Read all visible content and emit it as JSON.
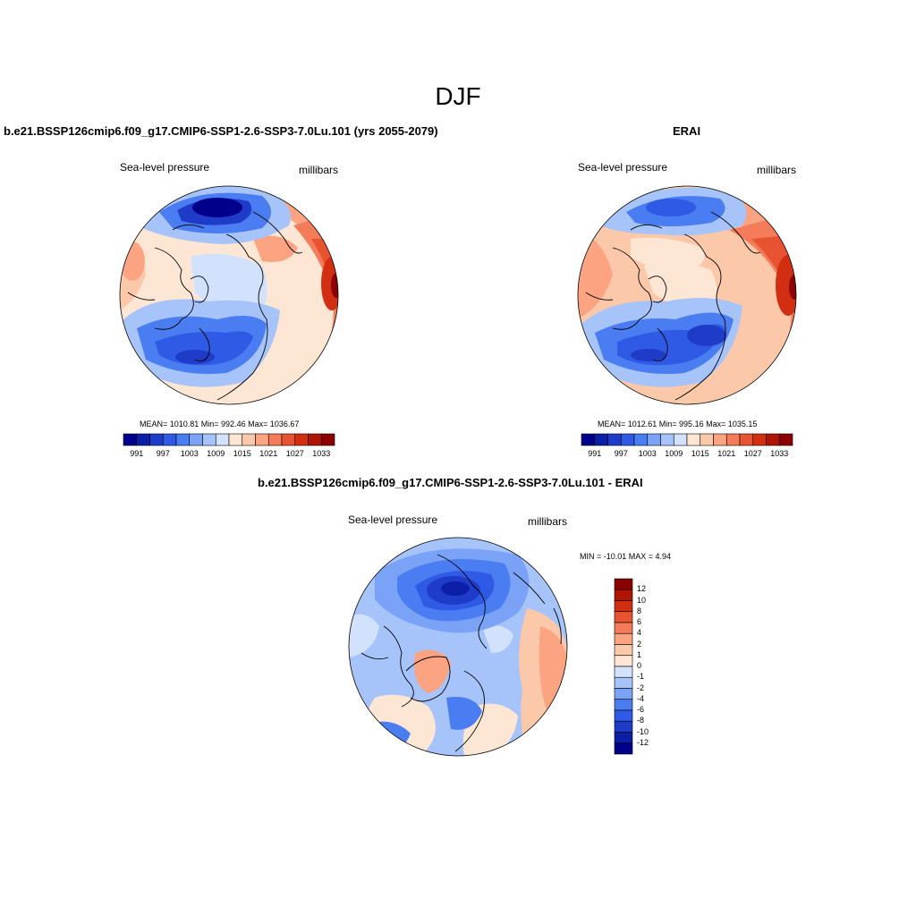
{
  "figure": {
    "title": "DJF"
  },
  "panels": {
    "model": {
      "title": "b.e21.BSSP126cmip6.f09_g17.CMIP6-SSP1-2.6-SSP3-7.0Lu.101 (yrs 2055-2079)",
      "left_label": "Sea-level pressure",
      "right_label": "millibars",
      "stats": "MEAN= 1010.81  Min= 992.46  Max= 1036.67"
    },
    "obs": {
      "title": "ERAI",
      "left_label": "Sea-level pressure",
      "right_label": "millibars",
      "stats": "MEAN= 1012.61  Min= 995.16  Max= 1035.15"
    },
    "diff": {
      "title": "b.e21.BSSP126cmip6.f09_g17.CMIP6-SSP1-2.6-SSP3-7.0Lu.101 - ERAI",
      "left_label": "Sea-level pressure",
      "right_label": "millibars",
      "stats": "MIN = -10.01 MAX =   4.94"
    }
  },
  "colorbars": {
    "absolute": {
      "orientation": "horizontal",
      "tick_labels": [
        "991",
        "997",
        "1003",
        "1009",
        "1015",
        "1021",
        "1027",
        "1033"
      ],
      "colors": [
        "#00008b",
        "#0c1ea6",
        "#1e3cc8",
        "#2e5ae6",
        "#4a7cf2",
        "#7aa2f6",
        "#a6c4fa",
        "#d2e2fc",
        "#fde6d4",
        "#fcc8aa",
        "#fca482",
        "#f47c5a",
        "#e85432",
        "#d22e12",
        "#b01404",
        "#8b0000"
      ]
    },
    "difference": {
      "orientation": "vertical",
      "tick_labels": [
        "12",
        "10",
        "8",
        "6",
        "4",
        "2",
        "1",
        "0",
        "-1",
        "-2",
        "-4",
        "-6",
        "-8",
        "-10",
        "-12"
      ],
      "colors": [
        "#8b0000",
        "#b01404",
        "#d22e12",
        "#e85432",
        "#f47c5a",
        "#fca482",
        "#fcc8aa",
        "#fde6d4",
        "#d2e2fc",
        "#a6c4fa",
        "#7aa2f6",
        "#4a7cf2",
        "#2e5ae6",
        "#1e3cc8",
        "#0c1ea6",
        "#00008b"
      ]
    }
  }
}
